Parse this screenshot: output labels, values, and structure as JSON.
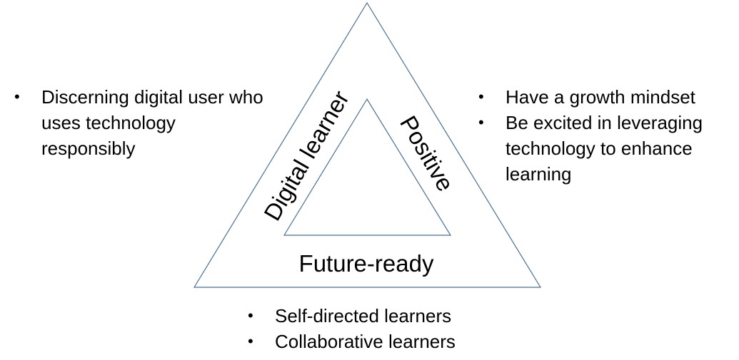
{
  "diagram": {
    "sides": {
      "left": "Digital learner",
      "right": "Positive",
      "bottom": "Future-ready"
    },
    "stroke_color": "#4a6f96"
  },
  "lists": {
    "left": [
      "Discerning digital user who uses technology responsibly"
    ],
    "right": [
      "Have a growth mindset",
      "Be excited in leveraging technology to enhance learning"
    ],
    "bottom": [
      "Self-directed learners",
      "Collaborative learners"
    ]
  }
}
